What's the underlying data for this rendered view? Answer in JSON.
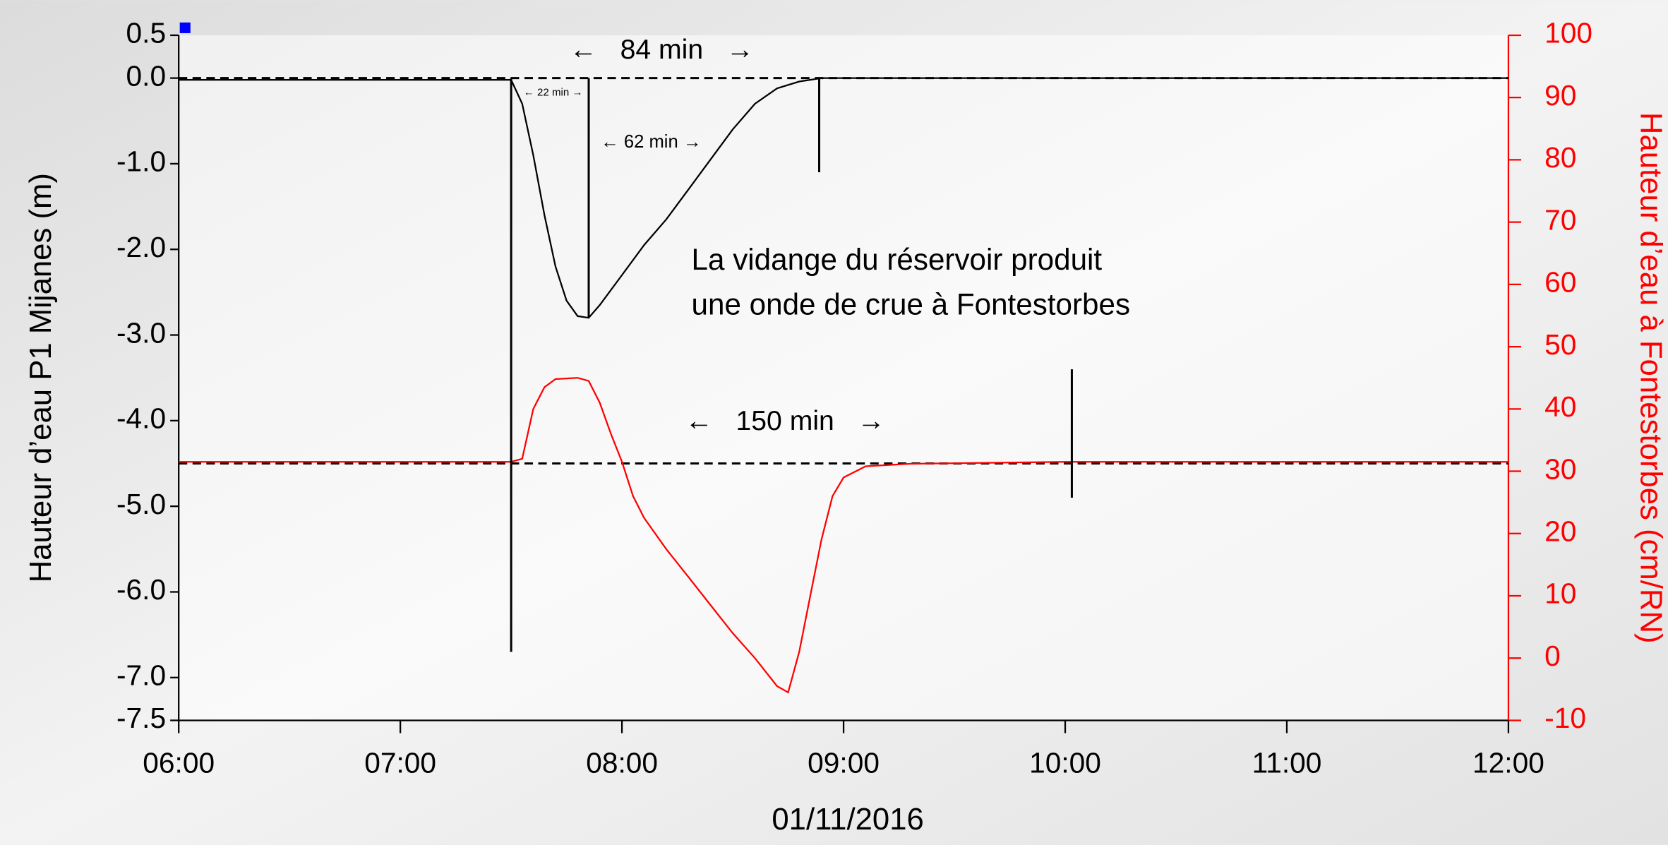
{
  "chart_data": {
    "type": "line",
    "x_label": "01/11/2016",
    "y_label": "Hauteur d’eau P1 Mijanes (m)",
    "y2_label": "Hauteur d’eau à Fontestorbes (cm/RN)",
    "xlim": [
      6,
      12
    ],
    "xticks": [
      {
        "value": 6,
        "label": "06:00"
      },
      {
        "value": 7,
        "label": "07:00"
      },
      {
        "value": 8,
        "label": "08:00"
      },
      {
        "value": 9,
        "label": "09:00"
      },
      {
        "value": 10,
        "label": "10:00"
      },
      {
        "value": 11,
        "label": "11:00"
      },
      {
        "value": 12,
        "label": "12:00"
      }
    ],
    "ylim": [
      -7.5,
      0.5
    ],
    "yticks": [
      0.5,
      {
        "value": 0,
        "label": "0.0"
      },
      {
        "value": -1,
        "label": "-1.0"
      },
      {
        "value": -2,
        "label": "-2.0"
      },
      {
        "value": -3,
        "label": "-3.0"
      },
      {
        "value": -4,
        "label": "-4.0"
      },
      {
        "value": -5,
        "label": "-5.0"
      },
      {
        "value": -6,
        "label": "-6.0"
      },
      {
        "value": -7,
        "label": "-7.0"
      },
      -7.5
    ],
    "y2lim": [
      -10,
      100
    ],
    "y2ticks": [
      -10,
      0,
      10,
      20,
      30,
      40,
      50,
      60,
      70,
      80,
      90,
      100
    ],
    "y2_color": "#ff0000",
    "series": [
      {
        "name": "P1 Mijanes",
        "color": "#000000",
        "x": [
          6,
          7.5,
          7.55,
          7.6,
          7.65,
          7.7,
          7.75,
          7.8,
          7.85,
          7.9,
          8.0,
          8.1,
          8.2,
          8.3,
          8.4,
          8.5,
          8.6,
          8.7,
          8.8,
          8.9,
          12
        ],
        "values": [
          -0.02,
          -0.02,
          -0.3,
          -0.9,
          -1.6,
          -2.2,
          -2.6,
          -2.78,
          -2.8,
          -2.65,
          -2.3,
          -1.95,
          -1.65,
          -1.3,
          -0.95,
          -0.6,
          -0.3,
          -0.12,
          -0.04,
          0,
          0
        ]
      },
      {
        "name": "Fontestorbes",
        "color": "#ff0000",
        "axis": "y2",
        "x": [
          6,
          7.5,
          7.55,
          7.6,
          7.65,
          7.7,
          7.8,
          7.85,
          7.9,
          7.95,
          8.0,
          8.05,
          8.1,
          8.2,
          8.3,
          8.4,
          8.5,
          8.6,
          8.7,
          8.75,
          8.8,
          8.85,
          8.9,
          8.95,
          9.0,
          9.1,
          9.3,
          10,
          12
        ],
        "values": [
          31.5,
          31.5,
          32,
          40,
          43.5,
          44.8,
          45,
          44.5,
          41,
          36,
          31.5,
          26,
          22.5,
          17.5,
          13,
          8.5,
          4,
          0,
          -4.5,
          -5.5,
          1,
          10,
          19,
          26,
          29,
          30.8,
          31.2,
          31.5,
          31.5
        ]
      }
    ],
    "hlines": [
      0,
      -4.5
    ],
    "vlines": [
      {
        "x": 7.5,
        "y": [
          0,
          -6.7
        ]
      },
      {
        "x": 7.85,
        "y": [
          0,
          -2.8
        ]
      },
      {
        "x": 8.89,
        "y": [
          0,
          -1.1
        ]
      },
      {
        "x": 10.03,
        "y": [
          -3.4,
          -4.9
        ]
      }
    ],
    "annotations": [
      "←   84 min   →",
      "← 22 min →",
      "← 62 min →",
      "←   150 min   →",
      "La vidange du réservoir produit",
      "une onde de crue à Fontestorbes"
    ]
  }
}
